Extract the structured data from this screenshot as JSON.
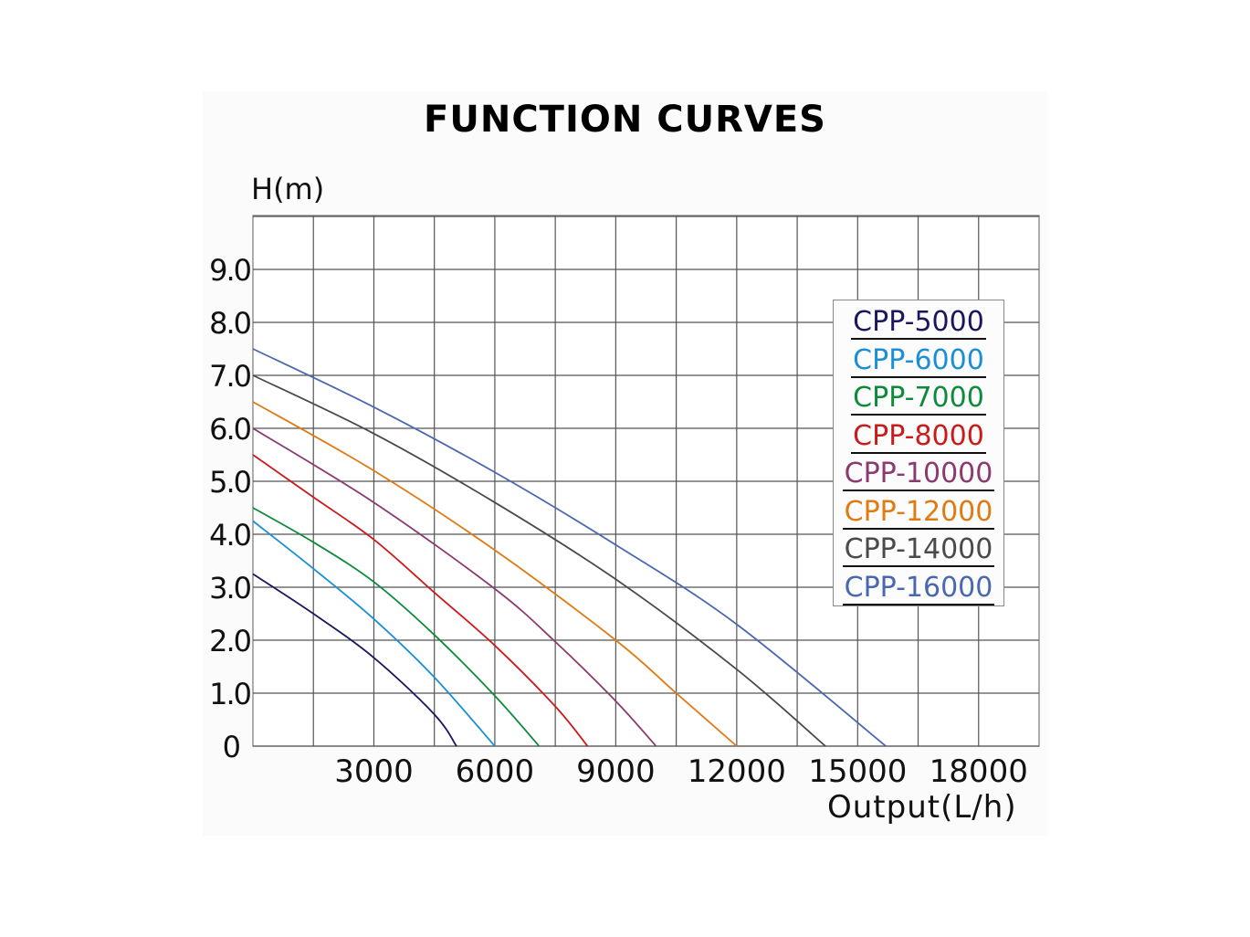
{
  "chart_data": {
    "type": "line",
    "title": "FUNCTION CURVES",
    "xlabel": "Output(L/h)",
    "ylabel": "H(m)",
    "xlim": [
      0,
      19500
    ],
    "ylim": [
      0,
      10.2
    ],
    "grid": true,
    "legend_placement": "right",
    "x_ticks": [
      3000,
      6000,
      9000,
      12000,
      15000,
      18000
    ],
    "x_tick_labels": [
      "3000",
      "6000",
      "9000",
      "12000",
      "15000",
      "18000"
    ],
    "y_ticks": [
      0,
      1,
      2,
      3,
      4,
      5,
      6,
      7,
      8,
      9
    ],
    "y_tick_labels": [
      "0",
      "1.0",
      "2.0",
      "3.0",
      "4.0",
      "5.0",
      "6.0",
      "7.0",
      "8.0",
      "9.0"
    ],
    "series": [
      {
        "name": "CPP-5000",
        "color": "#1a1660",
        "points": [
          [
            0,
            3.25
          ],
          [
            1500,
            2.5
          ],
          [
            3000,
            1.67
          ],
          [
            4500,
            0.6
          ],
          [
            5050,
            0
          ]
        ]
      },
      {
        "name": "CPP-6000",
        "color": "#1a8fd6",
        "points": [
          [
            0,
            4.25
          ],
          [
            1500,
            3.35
          ],
          [
            3000,
            2.4
          ],
          [
            4500,
            1.3
          ],
          [
            6000,
            0
          ]
        ]
      },
      {
        "name": "CPP-7000",
        "color": "#0d8a3a",
        "points": [
          [
            0,
            4.5
          ],
          [
            1500,
            3.85
          ],
          [
            3000,
            3.1
          ],
          [
            4500,
            2.1
          ],
          [
            6000,
            0.95
          ],
          [
            7100,
            0
          ]
        ]
      },
      {
        "name": "CPP-8000",
        "color": "#cc1a1a",
        "points": [
          [
            0,
            5.5
          ],
          [
            1500,
            4.7
          ],
          [
            3000,
            3.9
          ],
          [
            4500,
            2.9
          ],
          [
            6000,
            1.9
          ],
          [
            7500,
            0.75
          ],
          [
            8300,
            0
          ]
        ]
      },
      {
        "name": "CPP-10000",
        "color": "#8a3a6e",
        "points": [
          [
            0,
            6.0
          ],
          [
            3000,
            4.6
          ],
          [
            6000,
            2.97
          ],
          [
            7500,
            1.97
          ],
          [
            9000,
            0.85
          ],
          [
            10000,
            0
          ]
        ]
      },
      {
        "name": "CPP-12000",
        "color": "#e07a12",
        "points": [
          [
            0,
            6.5
          ],
          [
            3000,
            5.2
          ],
          [
            6000,
            3.7
          ],
          [
            9000,
            2.0
          ],
          [
            10500,
            1.0
          ],
          [
            12000,
            0
          ]
        ]
      },
      {
        "name": "CPP-14000",
        "color": "#4a4a4a",
        "points": [
          [
            0,
            7.0
          ],
          [
            3000,
            5.9
          ],
          [
            6000,
            4.6
          ],
          [
            9000,
            3.15
          ],
          [
            12000,
            1.45
          ],
          [
            14200,
            0
          ]
        ]
      },
      {
        "name": "CPP-16000",
        "color": "#4a68b0",
        "points": [
          [
            0,
            7.5
          ],
          [
            3000,
            6.4
          ],
          [
            6000,
            5.17
          ],
          [
            9000,
            3.8
          ],
          [
            12000,
            2.3
          ],
          [
            15700,
            0
          ]
        ]
      }
    ]
  }
}
